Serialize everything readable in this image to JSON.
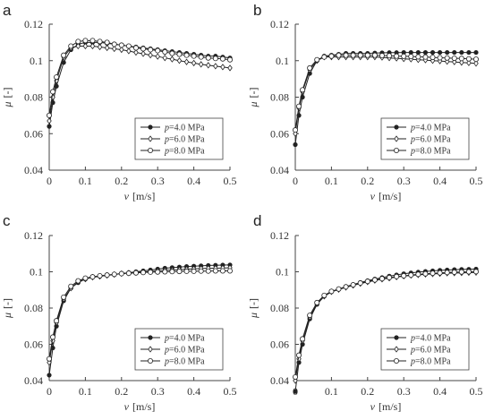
{
  "chart_data": [
    {
      "panel": "a",
      "type": "line",
      "xlabel_var": "v",
      "xlabel_unit": "[m/s]",
      "ylabel_var": "μ",
      "ylabel_unit": "[-]",
      "xlim": [
        0,
        0.5
      ],
      "ylim": [
        0.04,
        0.12
      ],
      "x_ticks": [
        0,
        0.1,
        0.2,
        0.3,
        0.4,
        0.5
      ],
      "x_tick_labels": [
        "0",
        "0.1",
        "0.2",
        "0.3",
        "0.4",
        "0.5"
      ],
      "y_ticks": [
        0.04,
        0.06,
        0.08,
        0.1,
        0.12
      ],
      "y_tick_labels": [
        "0.04",
        "0.06",
        "0.08",
        "0.1",
        "0.12"
      ],
      "grid": false,
      "legend_position": "bottom-right",
      "x": [
        0,
        0.01,
        0.02,
        0.04,
        0.06,
        0.08,
        0.1,
        0.12,
        0.14,
        0.16,
        0.18,
        0.2,
        0.22,
        0.24,
        0.26,
        0.28,
        0.3,
        0.32,
        0.34,
        0.36,
        0.38,
        0.4,
        0.42,
        0.44,
        0.46,
        0.48,
        0.5
      ],
      "series": [
        {
          "name_var": "p",
          "name_rest": "=4.0 MPa",
          "marker": "filled-circle",
          "values": [
            0.064,
            0.077,
            0.086,
            0.099,
            0.106,
            0.109,
            0.11,
            0.11,
            0.11,
            0.1095,
            0.109,
            0.1085,
            0.108,
            0.1075,
            0.107,
            0.1065,
            0.106,
            0.1055,
            0.105,
            0.1045,
            0.104,
            0.1035,
            0.103,
            0.1025,
            0.1025,
            0.102,
            0.1015
          ]
        },
        {
          "name_var": "p",
          "name_rest": "=6.0 MPa",
          "marker": "diamond",
          "values": [
            0.067,
            0.08,
            0.089,
            0.102,
            0.107,
            0.108,
            0.108,
            0.108,
            0.1075,
            0.107,
            0.1065,
            0.106,
            0.1053,
            0.1045,
            0.1038,
            0.103,
            0.1023,
            0.1015,
            0.1008,
            0.1,
            0.0993,
            0.0987,
            0.098,
            0.0975,
            0.097,
            0.0965,
            0.096
          ]
        },
        {
          "name_var": "p",
          "name_rest": "=8.0 MPa",
          "marker": "open-circle",
          "values": [
            0.07,
            0.083,
            0.091,
            0.103,
            0.108,
            0.1105,
            0.111,
            0.111,
            0.1105,
            0.11,
            0.109,
            0.1085,
            0.108,
            0.107,
            0.1065,
            0.106,
            0.1055,
            0.1048,
            0.104,
            0.1035,
            0.103,
            0.1025,
            0.102,
            0.1015,
            0.1012,
            0.101,
            0.1005
          ]
        }
      ]
    },
    {
      "panel": "b",
      "type": "line",
      "xlabel_var": "v",
      "xlabel_unit": "[m/s]",
      "ylabel_var": "μ",
      "ylabel_unit": "[-]",
      "xlim": [
        0,
        0.5
      ],
      "ylim": [
        0.04,
        0.12
      ],
      "x_ticks": [
        0,
        0.1,
        0.2,
        0.3,
        0.4,
        0.5
      ],
      "x_tick_labels": [
        "0",
        "0.1",
        "0.2",
        "0.3",
        "0.4",
        "0.5"
      ],
      "y_ticks": [
        0.04,
        0.06,
        0.08,
        0.1,
        0.12
      ],
      "y_tick_labels": [
        "0.04",
        "0.06",
        "0.08",
        "0.1",
        "0.12"
      ],
      "grid": false,
      "legend_position": "bottom-right",
      "x": [
        0,
        0.01,
        0.02,
        0.04,
        0.06,
        0.08,
        0.1,
        0.12,
        0.14,
        0.16,
        0.18,
        0.2,
        0.22,
        0.24,
        0.26,
        0.28,
        0.3,
        0.32,
        0.34,
        0.36,
        0.38,
        0.4,
        0.42,
        0.44,
        0.46,
        0.48,
        0.5
      ],
      "series": [
        {
          "name_var": "p",
          "name_rest": "=4.0 MPa",
          "marker": "filled-circle",
          "values": [
            0.054,
            0.07,
            0.08,
            0.093,
            0.1,
            0.1025,
            0.103,
            0.1035,
            0.104,
            0.104,
            0.104,
            0.104,
            0.1042,
            0.1043,
            0.1044,
            0.1044,
            0.1045,
            0.1045,
            0.1045,
            0.1045,
            0.1045,
            0.1045,
            0.1045,
            0.1045,
            0.1045,
            0.1045,
            0.1045
          ]
        },
        {
          "name_var": "p",
          "name_rest": "=6.0 MPa",
          "marker": "diamond",
          "values": [
            0.06,
            0.074,
            0.083,
            0.095,
            0.1,
            0.102,
            0.102,
            0.102,
            0.102,
            0.102,
            0.102,
            0.102,
            0.102,
            0.1018,
            0.1015,
            0.1013,
            0.101,
            0.1008,
            0.1005,
            0.1003,
            0.1,
            0.0998,
            0.0995,
            0.0993,
            0.099,
            0.0988,
            0.0985
          ]
        },
        {
          "name_var": "p",
          "name_rest": "=8.0 MPa",
          "marker": "open-circle",
          "values": [
            0.062,
            0.075,
            0.084,
            0.096,
            0.1005,
            0.102,
            0.1025,
            0.103,
            0.103,
            0.103,
            0.103,
            0.103,
            0.103,
            0.1028,
            0.1027,
            0.1025,
            0.1024,
            0.1023,
            0.1021,
            0.102,
            0.1018,
            0.1016,
            0.1015,
            0.1013,
            0.1012,
            0.101,
            0.1008
          ]
        }
      ]
    },
    {
      "panel": "c",
      "type": "line",
      "xlabel_var": "v",
      "xlabel_unit": "[m/s]",
      "ylabel_var": "μ",
      "ylabel_unit": "[-]",
      "xlim": [
        0,
        0.5
      ],
      "ylim": [
        0.04,
        0.12
      ],
      "x_ticks": [
        0,
        0.1,
        0.2,
        0.3,
        0.4,
        0.5
      ],
      "x_tick_labels": [
        "0",
        "0.1",
        "0.2",
        "0.3",
        "0.4",
        "0.5"
      ],
      "y_ticks": [
        0.04,
        0.06,
        0.08,
        0.1,
        0.12
      ],
      "y_tick_labels": [
        "0.04",
        "0.06",
        "0.08",
        "0.1",
        "0.12"
      ],
      "grid": false,
      "legend_position": "bottom-right",
      "x": [
        0,
        0.01,
        0.02,
        0.04,
        0.06,
        0.08,
        0.1,
        0.12,
        0.14,
        0.16,
        0.18,
        0.2,
        0.22,
        0.24,
        0.26,
        0.28,
        0.3,
        0.32,
        0.34,
        0.36,
        0.38,
        0.4,
        0.42,
        0.44,
        0.46,
        0.48,
        0.5
      ],
      "series": [
        {
          "name_var": "p",
          "name_rest": "=4.0 MPa",
          "marker": "filled-circle",
          "values": [
            0.043,
            0.058,
            0.07,
            0.084,
            0.091,
            0.094,
            0.096,
            0.097,
            0.0975,
            0.098,
            0.0985,
            0.099,
            0.0995,
            0.1,
            0.1005,
            0.101,
            0.1015,
            0.102,
            0.1023,
            0.1026,
            0.1029,
            0.1031,
            0.1033,
            0.1035,
            0.1036,
            0.1037,
            0.1038
          ]
        },
        {
          "name_var": "p",
          "name_rest": "=6.0 MPa",
          "marker": "diamond",
          "values": [
            0.05,
            0.062,
            0.072,
            0.085,
            0.091,
            0.0945,
            0.096,
            0.097,
            0.0975,
            0.098,
            0.0985,
            0.099,
            0.0993,
            0.0996,
            0.0999,
            0.1002,
            0.1005,
            0.1008,
            0.101,
            0.1012,
            0.1014,
            0.1016,
            0.1018,
            0.1019,
            0.102,
            0.1021,
            0.1022
          ]
        },
        {
          "name_var": "p",
          "name_rest": "=8.0 MPa",
          "marker": "open-circle",
          "values": [
            0.052,
            0.064,
            0.073,
            0.086,
            0.092,
            0.095,
            0.0965,
            0.0972,
            0.0978,
            0.0982,
            0.0986,
            0.099,
            0.0992,
            0.0994,
            0.0996,
            0.0998,
            0.0999,
            0.1,
            0.1001,
            0.1002,
            0.1003,
            0.1003,
            0.1004,
            0.1004,
            0.1005,
            0.1005,
            0.1005
          ]
        }
      ]
    },
    {
      "panel": "d",
      "type": "line",
      "xlabel_var": "v",
      "xlabel_unit": "[m/s]",
      "ylabel_var": "μ",
      "ylabel_unit": "[-]",
      "xlim": [
        0,
        0.5
      ],
      "ylim": [
        0.04,
        0.12
      ],
      "x_ticks": [
        0,
        0.1,
        0.2,
        0.3,
        0.4,
        0.5
      ],
      "x_tick_labels": [
        "0",
        "0.1",
        "0.2",
        "0.3",
        "0.4",
        "0.5"
      ],
      "y_ticks": [
        0.04,
        0.06,
        0.08,
        0.1,
        0.12
      ],
      "y_tick_labels": [
        "0.04",
        "0.06",
        "0.08",
        "0.1",
        "0.12"
      ],
      "grid": false,
      "legend_position": "bottom-right",
      "x": [
        0,
        0.01,
        0.02,
        0.04,
        0.06,
        0.08,
        0.1,
        0.12,
        0.14,
        0.16,
        0.18,
        0.2,
        0.22,
        0.24,
        0.26,
        0.28,
        0.3,
        0.32,
        0.34,
        0.36,
        0.38,
        0.4,
        0.42,
        0.44,
        0.46,
        0.48,
        0.5
      ],
      "series": [
        {
          "name_var": "p",
          "name_rest": "=4.0 MPa",
          "marker": "filled-circle",
          "values": [
            0.034,
            0.05,
            0.06,
            0.074,
            0.082,
            0.0865,
            0.089,
            0.0905,
            0.0918,
            0.093,
            0.0941,
            0.0951,
            0.096,
            0.0968,
            0.0976,
            0.0983,
            0.0989,
            0.0994,
            0.0998,
            0.1002,
            0.1005,
            0.1008,
            0.101,
            0.1012,
            0.1013,
            0.1014,
            0.1015
          ]
        },
        {
          "name_var": "p",
          "name_rest": "=6.0 MPa",
          "marker": "diamond",
          "values": [
            0.04,
            0.052,
            0.062,
            0.075,
            0.0825,
            0.0865,
            0.089,
            0.0902,
            0.0914,
            0.0925,
            0.0935,
            0.0944,
            0.0952,
            0.0959,
            0.0965,
            0.0971,
            0.0976,
            0.098,
            0.0983,
            0.0986,
            0.0988,
            0.099,
            0.0992,
            0.0993,
            0.0994,
            0.0995,
            0.0996
          ]
        },
        {
          "name_var": "p",
          "name_rest": "=8.0 MPa",
          "marker": "open-circle",
          "values": [
            0.042,
            0.054,
            0.063,
            0.076,
            0.083,
            0.087,
            0.0892,
            0.0905,
            0.0917,
            0.0928,
            0.0938,
            0.0947,
            0.0955,
            0.0962,
            0.0968,
            0.0974,
            0.0978,
            0.0982,
            0.0986,
            0.0989,
            0.0992,
            0.0994,
            0.0996,
            0.0998,
            0.0999,
            0.1,
            0.1001
          ]
        }
      ]
    }
  ]
}
